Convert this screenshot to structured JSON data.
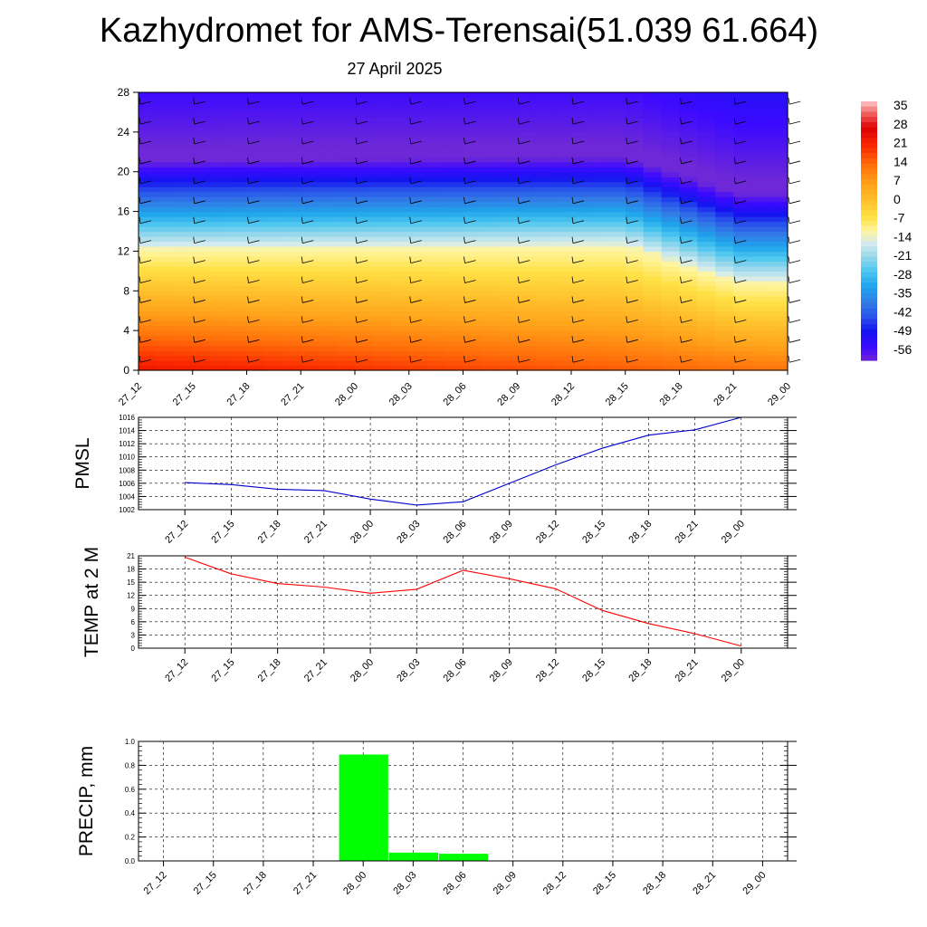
{
  "title": "Kazhydromet for AMS-Terensai(51.039 61.664)",
  "subtitle": "27 April 2025",
  "time_labels": [
    "27_12",
    "27_15",
    "27_18",
    "27_21",
    "28_00",
    "28_03",
    "28_06",
    "28_09",
    "28_12",
    "28_15",
    "28_18",
    "28_21",
    "29_00"
  ],
  "chart_data": [
    {
      "type": "heatmap",
      "x": [
        "27_12",
        "27_15",
        "27_18",
        "27_21",
        "28_00",
        "28_03",
        "28_06",
        "28_09",
        "28_12",
        "28_15",
        "28_18",
        "28_21",
        "29_00"
      ],
      "ylim": [
        0,
        28
      ],
      "yticks": [
        "0",
        "4",
        "8",
        "12",
        "16",
        "20",
        "24",
        "28"
      ],
      "colorbar_labels": [
        "35",
        "28",
        "21",
        "14",
        "7",
        "0",
        "-7",
        "-14",
        "-21",
        "-28",
        "-35",
        "-42",
        "-49",
        "-56"
      ],
      "colorbar_range": [
        -60,
        38
      ],
      "wind_barbs": true
    },
    {
      "type": "line",
      "ylabel": "PMSL",
      "ylim": [
        1002,
        1016
      ],
      "yticks": [
        "1002",
        "1004",
        "1006",
        "1008",
        "1010",
        "1012",
        "1014",
        "1016"
      ],
      "x": [
        "27_12",
        "27_15",
        "27_18",
        "27_21",
        "28_00",
        "28_03",
        "28_06",
        "28_09",
        "28_12",
        "28_15",
        "28_18",
        "28_21",
        "29_00"
      ],
      "values": [
        1006.1,
        1005.8,
        1005.1,
        1004.9,
        1003.6,
        1002.7,
        1003.2,
        1006.0,
        1008.8,
        1011.3,
        1013.3,
        1014.1,
        1016.0
      ],
      "color": "#0000cc",
      "grid": true
    },
    {
      "type": "line",
      "ylabel": "TEMP at 2 M",
      "ylim": [
        0,
        21
      ],
      "yticks": [
        "0",
        "3",
        "6",
        "9",
        "12",
        "15",
        "18",
        "21"
      ],
      "x": [
        "27_12",
        "27_15",
        "27_18",
        "27_21",
        "28_00",
        "28_03",
        "28_06",
        "28_09",
        "28_12",
        "28_15",
        "28_18",
        "28_21",
        "29_00"
      ],
      "values": [
        20.7,
        16.9,
        14.7,
        13.9,
        12.5,
        13.4,
        17.7,
        15.8,
        13.5,
        8.6,
        5.6,
        3.3,
        0.5
      ],
      "color": "#ff0000",
      "grid": true
    },
    {
      "type": "bar",
      "ylabel": "PRECIP, mm",
      "ylim": [
        0,
        1.0
      ],
      "yticks": [
        "0.0",
        "0.2",
        "0.4",
        "0.6",
        "0.8",
        "1.0"
      ],
      "categories": [
        "27_12",
        "27_15",
        "27_18",
        "27_21",
        "28_00",
        "28_03",
        "28_06",
        "28_09",
        "28_12",
        "28_15",
        "28_18",
        "28_21",
        "29_00"
      ],
      "values": [
        0,
        0,
        0,
        0,
        0.89,
        0.07,
        0.06,
        0,
        0,
        0,
        0,
        0,
        0
      ],
      "color": "#00ff00",
      "grid": true
    }
  ]
}
